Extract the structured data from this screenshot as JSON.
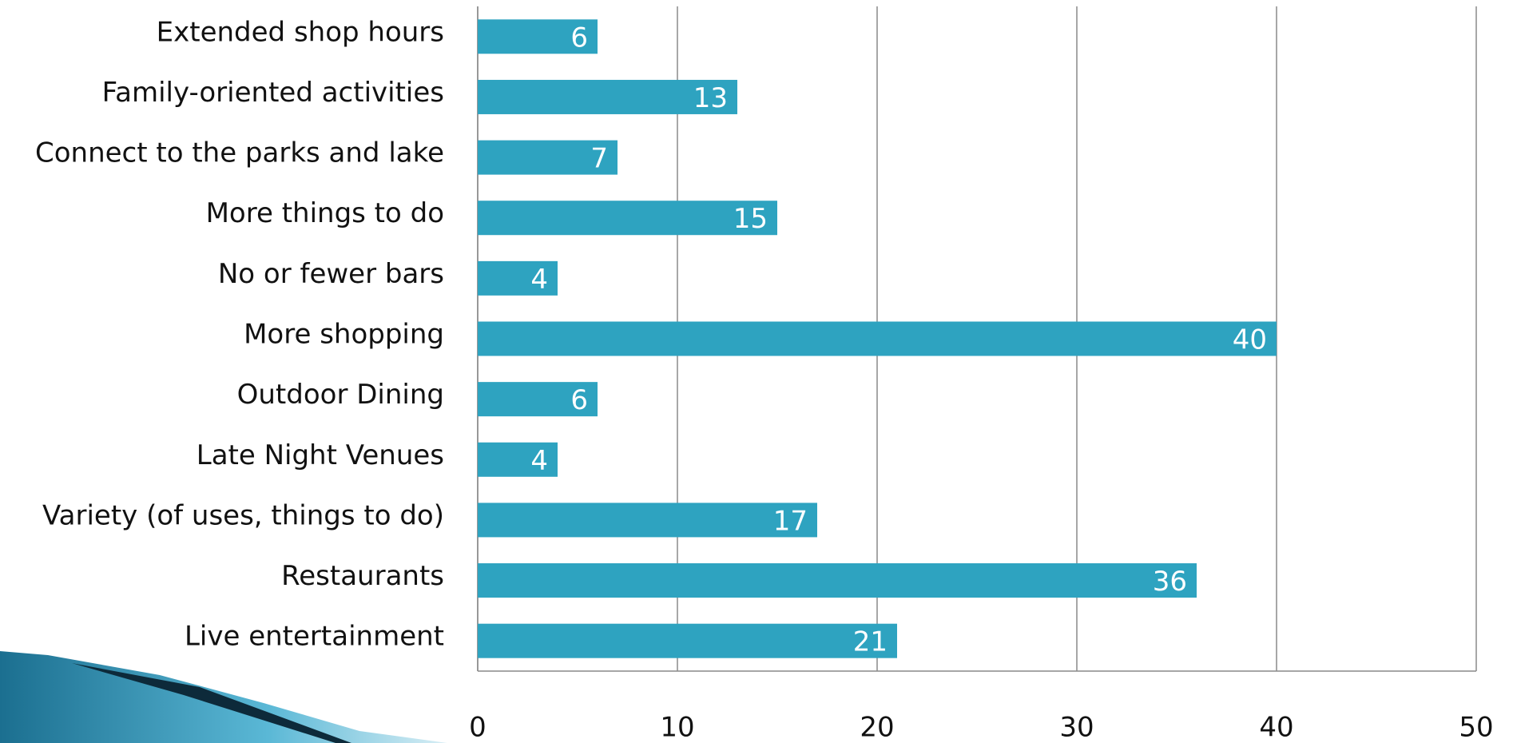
{
  "chart_data": {
    "type": "bar",
    "orientation": "horizontal",
    "categories": [
      "Extended shop hours",
      "Family-oriented activities",
      "Connect to the parks and lake",
      "More things to do",
      "No or fewer bars",
      "More shopping",
      "Outdoor Dining",
      "Late Night Venues",
      "Variety (of uses, things to do)",
      "Restaurants",
      "Live entertainment"
    ],
    "values": [
      6,
      13,
      7,
      15,
      4,
      40,
      6,
      4,
      17,
      36,
      21
    ],
    "color": "#2ea3c0",
    "xlim": [
      0,
      50
    ],
    "xticks": [
      0,
      10,
      20,
      30,
      40,
      50
    ],
    "grid": true,
    "data_labels": true
  }
}
